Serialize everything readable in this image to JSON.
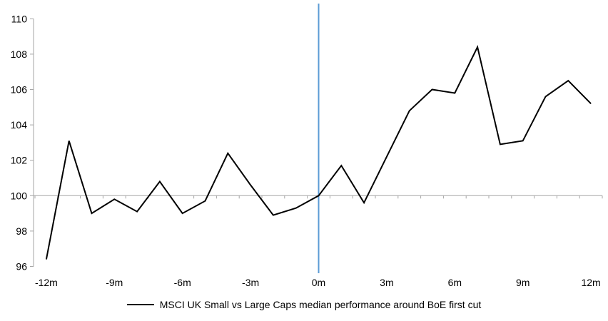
{
  "chart_data": {
    "type": "line",
    "title": "",
    "xlabel": "",
    "ylabel": "",
    "x": [
      -12,
      -11,
      -10,
      -9,
      -8,
      -7,
      -6,
      -5,
      -4,
      -3,
      -2,
      -1,
      0,
      1,
      2,
      3,
      4,
      5,
      6,
      7,
      8,
      9,
      10,
      11,
      12
    ],
    "series": [
      {
        "name": "MSCI UK Small vs Large Caps median performance around BoE first cut",
        "color": "#000000",
        "values": [
          96.4,
          103.1,
          99.0,
          99.8,
          99.1,
          100.8,
          99.0,
          99.7,
          102.4,
          100.6,
          98.9,
          99.3,
          100.0,
          101.7,
          99.6,
          102.2,
          104.8,
          106.0,
          105.8,
          108.4,
          102.9,
          103.1,
          105.6,
          106.5,
          105.2
        ]
      }
    ],
    "x_ticks": [
      {
        "value": -12,
        "label": "-12m"
      },
      {
        "value": -9,
        "label": "-9m"
      },
      {
        "value": -6,
        "label": "-6m"
      },
      {
        "value": -3,
        "label": "-3m"
      },
      {
        "value": 0,
        "label": "0m"
      },
      {
        "value": 3,
        "label": "3m"
      },
      {
        "value": 6,
        "label": "6m"
      },
      {
        "value": 9,
        "label": "9m"
      },
      {
        "value": 12,
        "label": "12m"
      }
    ],
    "y_ticks": [
      {
        "value": 96,
        "label": "96"
      },
      {
        "value": 98,
        "label": "98"
      },
      {
        "value": 100,
        "label": "100"
      },
      {
        "value": 102,
        "label": "102"
      },
      {
        "value": 104,
        "label": "104"
      },
      {
        "value": 106,
        "label": "106"
      },
      {
        "value": 108,
        "label": "108"
      },
      {
        "value": 110,
        "label": "110"
      }
    ],
    "xlim": [
      -12,
      12
    ],
    "ylim": [
      96,
      110
    ],
    "grid": "none",
    "legend_position": "bottom-center",
    "reference_lines": {
      "horizontal": {
        "value": 100,
        "color": "#a6a6a6"
      },
      "vertical": {
        "value": 0,
        "color": "#5b9bd5"
      }
    },
    "axis_color": "#a6a6a6",
    "text_color": "#000000",
    "background_color": "#ffffff"
  }
}
